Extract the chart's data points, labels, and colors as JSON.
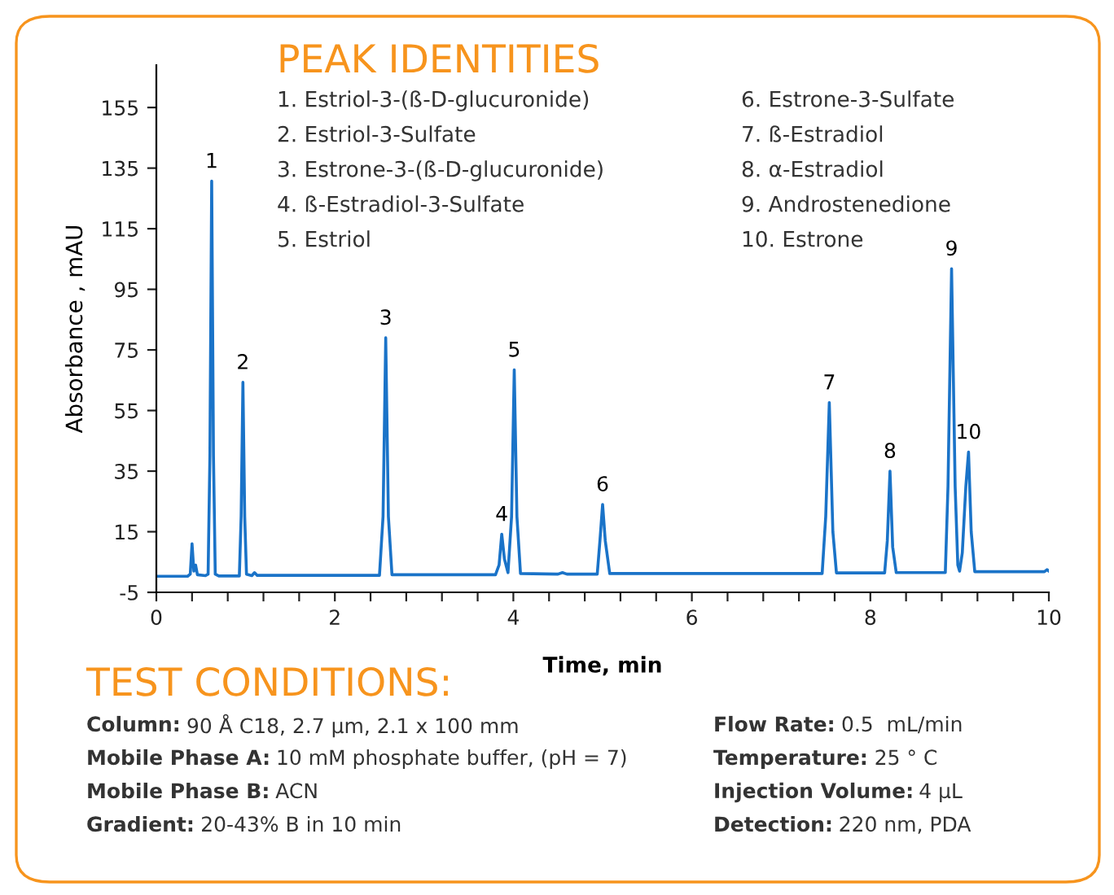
{
  "chart_data": {
    "type": "line",
    "xlabel": "Time, min",
    "ylabel": "Absorbance , mAU",
    "xlim": [
      0,
      10
    ],
    "ylim": [
      -5,
      169
    ],
    "xticks": [
      0,
      {
        "value": 0.4,
        "label": null
      },
      {
        "value": 0.8,
        "label": null
      },
      {
        "value": 1.2,
        "label": null
      },
      {
        "value": 1.6,
        "label": null
      },
      2,
      {
        "value": 2.4,
        "label": null
      },
      {
        "value": 2.8,
        "label": null
      },
      {
        "value": 3.2,
        "label": null
      },
      {
        "value": 3.6,
        "label": null
      },
      4,
      {
        "value": 4.4,
        "label": null
      },
      {
        "value": 4.8,
        "label": null
      },
      {
        "value": 5.2,
        "label": null
      },
      {
        "value": 5.6,
        "label": null
      },
      6,
      {
        "value": 6.4,
        "label": null
      },
      {
        "value": 6.8,
        "label": null
      },
      {
        "value": 7.2,
        "label": null
      },
      {
        "value": 7.6,
        "label": null
      },
      8,
      {
        "value": 8.4,
        "label": null
      },
      {
        "value": 8.8,
        "label": null
      },
      {
        "value": 9.2,
        "label": null
      },
      {
        "value": 9.6,
        "label": null
      },
      10
    ],
    "yticks": [
      -5,
      15,
      35,
      55,
      75,
      95,
      115,
      135,
      155
    ],
    "grid": false,
    "legend": false,
    "marker": "none",
    "line_style": "solid",
    "series": [
      {
        "color": "#1a73c8",
        "x": [
          0,
          0.35,
          0.38,
          0.4,
          0.42,
          0.44,
          0.46,
          0.55,
          0.58,
          0.6,
          0.62,
          0.64,
          0.66,
          0.7,
          0.93,
          0.95,
          0.97,
          0.99,
          1.01,
          1.07,
          1.1,
          1.13,
          2.5,
          2.54,
          2.57,
          2.6,
          2.64,
          3.8,
          3.84,
          3.87,
          3.9,
          3.94,
          3.98,
          4.01,
          4.04,
          4.08,
          4.5,
          4.55,
          4.6,
          4.94,
          4.97,
          5.0,
          5.03,
          5.08,
          7.46,
          7.5,
          7.54,
          7.58,
          7.62,
          8.16,
          8.19,
          8.22,
          8.25,
          8.29,
          8.84,
          8.87,
          8.91,
          8.95,
          8.98,
          9.0,
          9.03,
          9.07,
          9.1,
          9.13,
          9.17,
          9.95,
          9.98,
          10
        ],
        "values": [
          0.3,
          0.3,
          1,
          11,
          2,
          4,
          0.8,
          0.5,
          1,
          40,
          130.7,
          40,
          1,
          0.4,
          0.4,
          20,
          64.3,
          20,
          1,
          0.5,
          1.5,
          0.6,
          0.6,
          20,
          79,
          20,
          0.8,
          0.8,
          4,
          14.2,
          6,
          1.5,
          20,
          68.4,
          20,
          1.2,
          1,
          1.5,
          1,
          1,
          12,
          24,
          12,
          1.2,
          1.2,
          20,
          57.6,
          15,
          1.4,
          1.4,
          12,
          35,
          10,
          1.5,
          1.5,
          30,
          101.8,
          30,
          4,
          2,
          8,
          30,
          41.3,
          15,
          1.8,
          1.8,
          2.5,
          2
        ]
      }
    ],
    "annotations": [
      {
        "text": "1",
        "x": 0.62,
        "y": 130.7
      },
      {
        "text": "2",
        "x": 0.97,
        "y": 64.3
      },
      {
        "text": "3",
        "x": 2.57,
        "y": 79
      },
      {
        "text": "4",
        "x": 3.87,
        "y": 14.2
      },
      {
        "text": "5",
        "x": 4.01,
        "y": 68.4
      },
      {
        "text": "6",
        "x": 5.0,
        "y": 24
      },
      {
        "text": "7",
        "x": 7.54,
        "y": 57.6
      },
      {
        "text": "8",
        "x": 8.22,
        "y": 35
      },
      {
        "text": "9",
        "x": 8.91,
        "y": 101.8
      },
      {
        "text": "10",
        "x": 9.1,
        "y": 41.3
      },
      "PEAK IDENTITIES",
      "1. Estriol-3-(ß-D-glucuronide)",
      "2. Estriol-3-Sulfate",
      "3. Estrone-3-(ß-D-glucuronide)",
      "4. ß-Estradiol-3-Sulfate",
      "5. Estriol",
      "6. Estrone-3-Sulfate",
      "7. ß-Estradiol",
      "8. α-Estradiol",
      "9. Androstenedione",
      "10. Estrone",
      "TEST CONDITIONS:",
      "Column: 90 Å C18, 2.7 µm, 2.1 x 100 mm",
      "Mobile Phase A: 10 mM phosphate buffer, (pH = 7)",
      "Mobile Phase B: ACN",
      "Gradient: 20-43% B in 10 min",
      "Flow Rate: 0.5  mL/min",
      "Temperature: 25 ° C",
      "Injection Volume: 4 µL",
      "Detection: 220 nm, PDA"
    ]
  }
}
